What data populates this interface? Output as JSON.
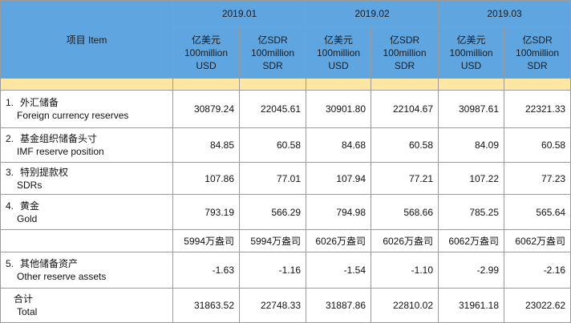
{
  "header": {
    "item": "项目 Item",
    "periods": [
      "2019.01",
      "2019.02",
      "2019.03"
    ],
    "units": [
      [
        "亿美元",
        "100million",
        "USD"
      ],
      [
        "亿SDR",
        "100million",
        "SDR"
      ]
    ]
  },
  "rows": [
    {
      "num": "1.",
      "cn": "外汇储备",
      "en": "Foreign currency reserves",
      "values": [
        "30879.24",
        "22045.61",
        "30901.80",
        "22104.67",
        "30987.61",
        "22321.33"
      ]
    },
    {
      "num": "2.",
      "cn": "基金组织储备头寸",
      "en": "IMF reserve position",
      "values": [
        "84.85",
        "60.58",
        "84.68",
        "60.58",
        "84.09",
        "60.58"
      ]
    },
    {
      "num": "3.",
      "cn": "特别提款权",
      "en": "SDRs",
      "values": [
        "107.86",
        "77.01",
        "107.94",
        "77.21",
        "107.22",
        "77.23"
      ]
    },
    {
      "num": "4.",
      "cn": "黄金",
      "en": "Gold",
      "values": [
        "793.19",
        "566.29",
        "794.98",
        "568.66",
        "785.25",
        "565.64"
      ]
    },
    {
      "values": [
        "5994万盎司",
        "5994万盎司",
        "6026万盎司",
        "6026万盎司",
        "6062万盎司",
        "6062万盎司"
      ]
    },
    {
      "num": "5.",
      "cn": "其他储备资产",
      "en": "Other reserve assets",
      "values": [
        "-1.63",
        "-1.16",
        "-1.54",
        "-1.10",
        "-2.99",
        "-2.16"
      ]
    },
    {
      "cn": "合计",
      "en": "Total",
      "values": [
        "31863.52",
        "22748.33",
        "31887.86",
        "22810.02",
        "31961.18",
        "23022.62"
      ]
    }
  ]
}
